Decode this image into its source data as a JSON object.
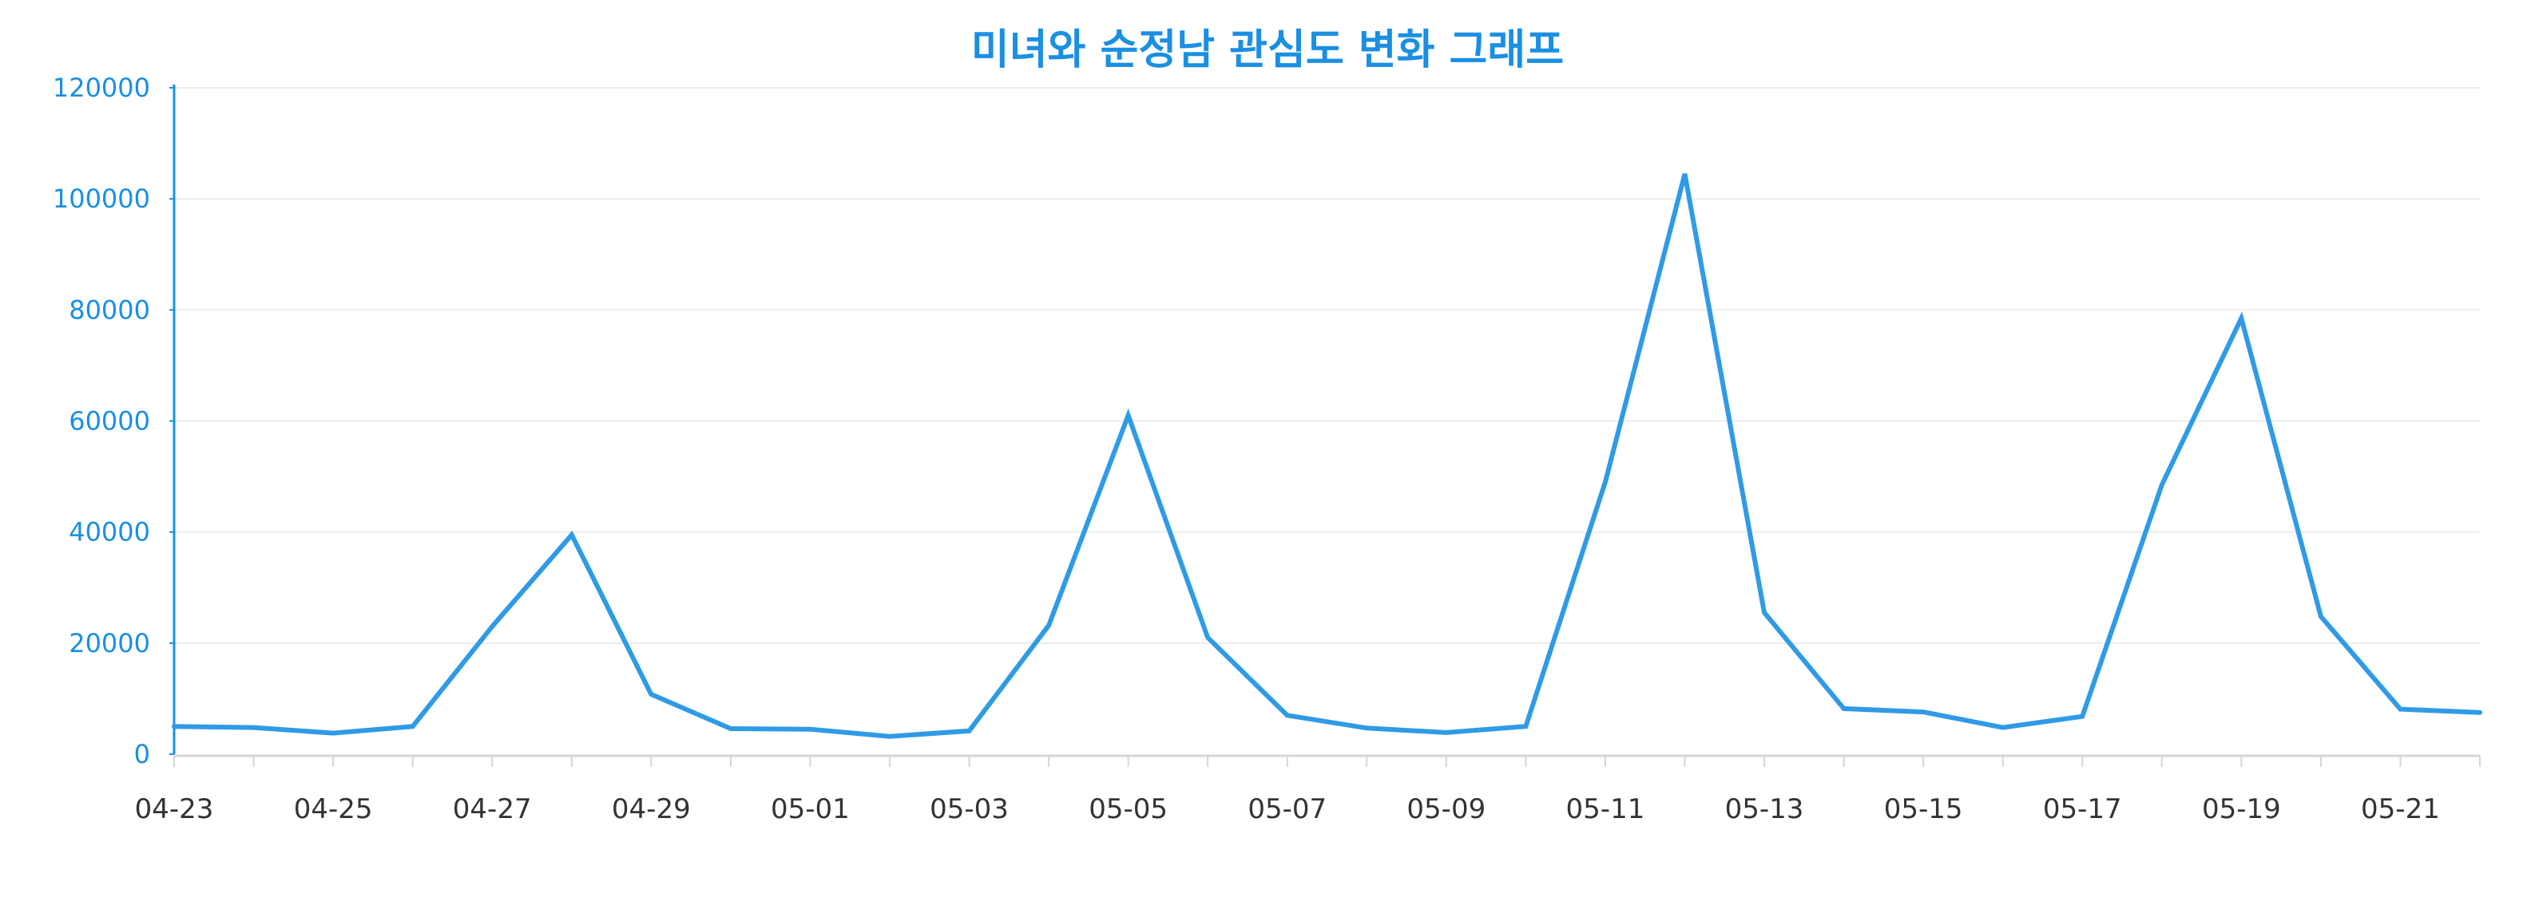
{
  "colors": {
    "title": "#1a8fe3",
    "line": "#2f9be6",
    "y_axis": "#1a8fe3",
    "x_label_default": "#333333",
    "x_label_saturday": "#2aa3d8",
    "x_label_holiday": "#e36a50"
  },
  "chart_data": {
    "type": "line",
    "title": "미녀와 순정남 관심도 변화 그래프",
    "xlabel": "",
    "ylabel": "",
    "ylim": [
      0,
      120000
    ],
    "yticks": [
      0,
      20000,
      40000,
      60000,
      80000,
      100000,
      120000
    ],
    "grid": true,
    "legend": "none",
    "x": [
      "04-23",
      "04-24",
      "04-25",
      "04-26",
      "04-27",
      "04-28",
      "04-29",
      "04-30",
      "05-01",
      "05-02",
      "05-03",
      "05-04",
      "05-05",
      "05-06",
      "05-07",
      "05-08",
      "05-09",
      "05-10",
      "05-11",
      "05-12",
      "05-13",
      "05-14",
      "05-15",
      "05-16",
      "05-17",
      "05-18",
      "05-19",
      "05-20",
      "05-21",
      "05-22"
    ],
    "xtick_labels": [
      {
        "label": "04-23",
        "kind": "default"
      },
      {
        "label": "04-25",
        "kind": "default"
      },
      {
        "label": "04-27",
        "kind": "saturday"
      },
      {
        "label": "04-29",
        "kind": "default"
      },
      {
        "label": "05-01",
        "kind": "default"
      },
      {
        "label": "05-03",
        "kind": "default"
      },
      {
        "label": "05-05",
        "kind": "holiday"
      },
      {
        "label": "05-07",
        "kind": "default"
      },
      {
        "label": "05-09",
        "kind": "default"
      },
      {
        "label": "05-11",
        "kind": "saturday"
      },
      {
        "label": "05-13",
        "kind": "default"
      },
      {
        "label": "05-15",
        "kind": "default"
      },
      {
        "label": "05-17",
        "kind": "default"
      },
      {
        "label": "05-19",
        "kind": "holiday"
      },
      {
        "label": "05-21",
        "kind": "default"
      }
    ],
    "series": [
      {
        "values": [
          5000,
          4800,
          3800,
          5000,
          23000,
          39500,
          10800,
          4600,
          4500,
          3200,
          4200,
          23200,
          61000,
          21000,
          7000,
          4700,
          3900,
          5000,
          49000,
          104500,
          25500,
          8200,
          7600,
          4800,
          6800,
          48500,
          78500,
          24800,
          8100,
          7500
        ]
      }
    ]
  }
}
